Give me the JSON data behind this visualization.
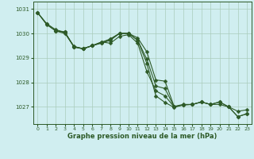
{
  "title": "Graphe pression niveau de la mer (hPa)",
  "bg_color": "#d0eef0",
  "grid_color": "#aaccbb",
  "line_color": "#2d5a27",
  "xlim": [
    -0.5,
    23.5
  ],
  "ylim": [
    1026.3,
    1031.3
  ],
  "yticks": [
    1027,
    1028,
    1029,
    1030,
    1031
  ],
  "xticks": [
    0,
    1,
    2,
    3,
    4,
    5,
    6,
    7,
    8,
    9,
    10,
    11,
    12,
    13,
    14,
    15,
    16,
    17,
    18,
    19,
    20,
    21,
    22,
    23
  ],
  "series1": {
    "x": [
      0,
      1,
      2,
      3,
      4,
      5,
      6,
      7,
      8,
      9,
      10,
      11,
      12,
      13,
      14,
      15,
      16,
      17,
      18,
      19,
      20,
      21,
      22,
      23
    ],
    "y": [
      1030.85,
      1030.4,
      1030.15,
      1030.05,
      1029.45,
      1029.38,
      1029.5,
      1029.6,
      1029.72,
      1030.0,
      1030.0,
      1029.82,
      1029.25,
      1028.1,
      1028.05,
      1027.02,
      1027.1,
      1027.1,
      1027.2,
      1027.1,
      1027.2,
      1027.0,
      1026.82,
      1026.88
    ]
  },
  "series2": {
    "x": [
      0,
      1,
      2,
      3,
      4,
      5,
      6,
      7,
      8,
      9,
      10,
      11,
      12,
      13,
      14,
      15,
      16,
      17,
      18,
      19,
      20,
      21,
      22,
      23
    ],
    "y": [
      1030.85,
      1030.38,
      1030.1,
      1030.0,
      1029.47,
      1029.37,
      1029.5,
      1029.62,
      1029.78,
      1030.0,
      1030.0,
      1029.72,
      1028.95,
      1027.85,
      1027.75,
      1027.0,
      1027.08,
      1027.1,
      1027.2,
      1027.1,
      1027.1,
      1027.0,
      1026.6,
      1026.72
    ]
  },
  "series3": {
    "x": [
      0,
      1,
      2,
      3,
      4,
      5,
      6,
      7,
      8,
      9,
      10,
      11,
      12,
      13,
      14,
      15
    ],
    "y": [
      1030.85,
      1030.36,
      1030.1,
      1030.05,
      1029.44,
      1029.37,
      1029.5,
      1029.65,
      1029.6,
      1029.88,
      1029.95,
      1029.6,
      1028.45,
      1027.65,
      1027.45,
      1027.0
    ]
  },
  "series4": {
    "x": [
      2,
      3,
      4,
      5,
      6,
      7,
      8,
      9,
      10,
      11,
      12,
      13,
      14,
      15,
      16,
      17,
      18,
      19,
      20,
      21,
      22,
      23
    ],
    "y": [
      1030.1,
      1030.05,
      1029.46,
      1029.38,
      1029.5,
      1029.64,
      1029.76,
      1030.0,
      1030.0,
      1029.72,
      1028.78,
      1027.45,
      1027.18,
      1026.98,
      1027.08,
      1027.1,
      1027.2,
      1027.1,
      1027.2,
      1027.0,
      1026.6,
      1026.72
    ]
  },
  "series5": {
    "x": [
      22,
      23
    ],
    "y": [
      1026.55,
      1026.68
    ]
  }
}
